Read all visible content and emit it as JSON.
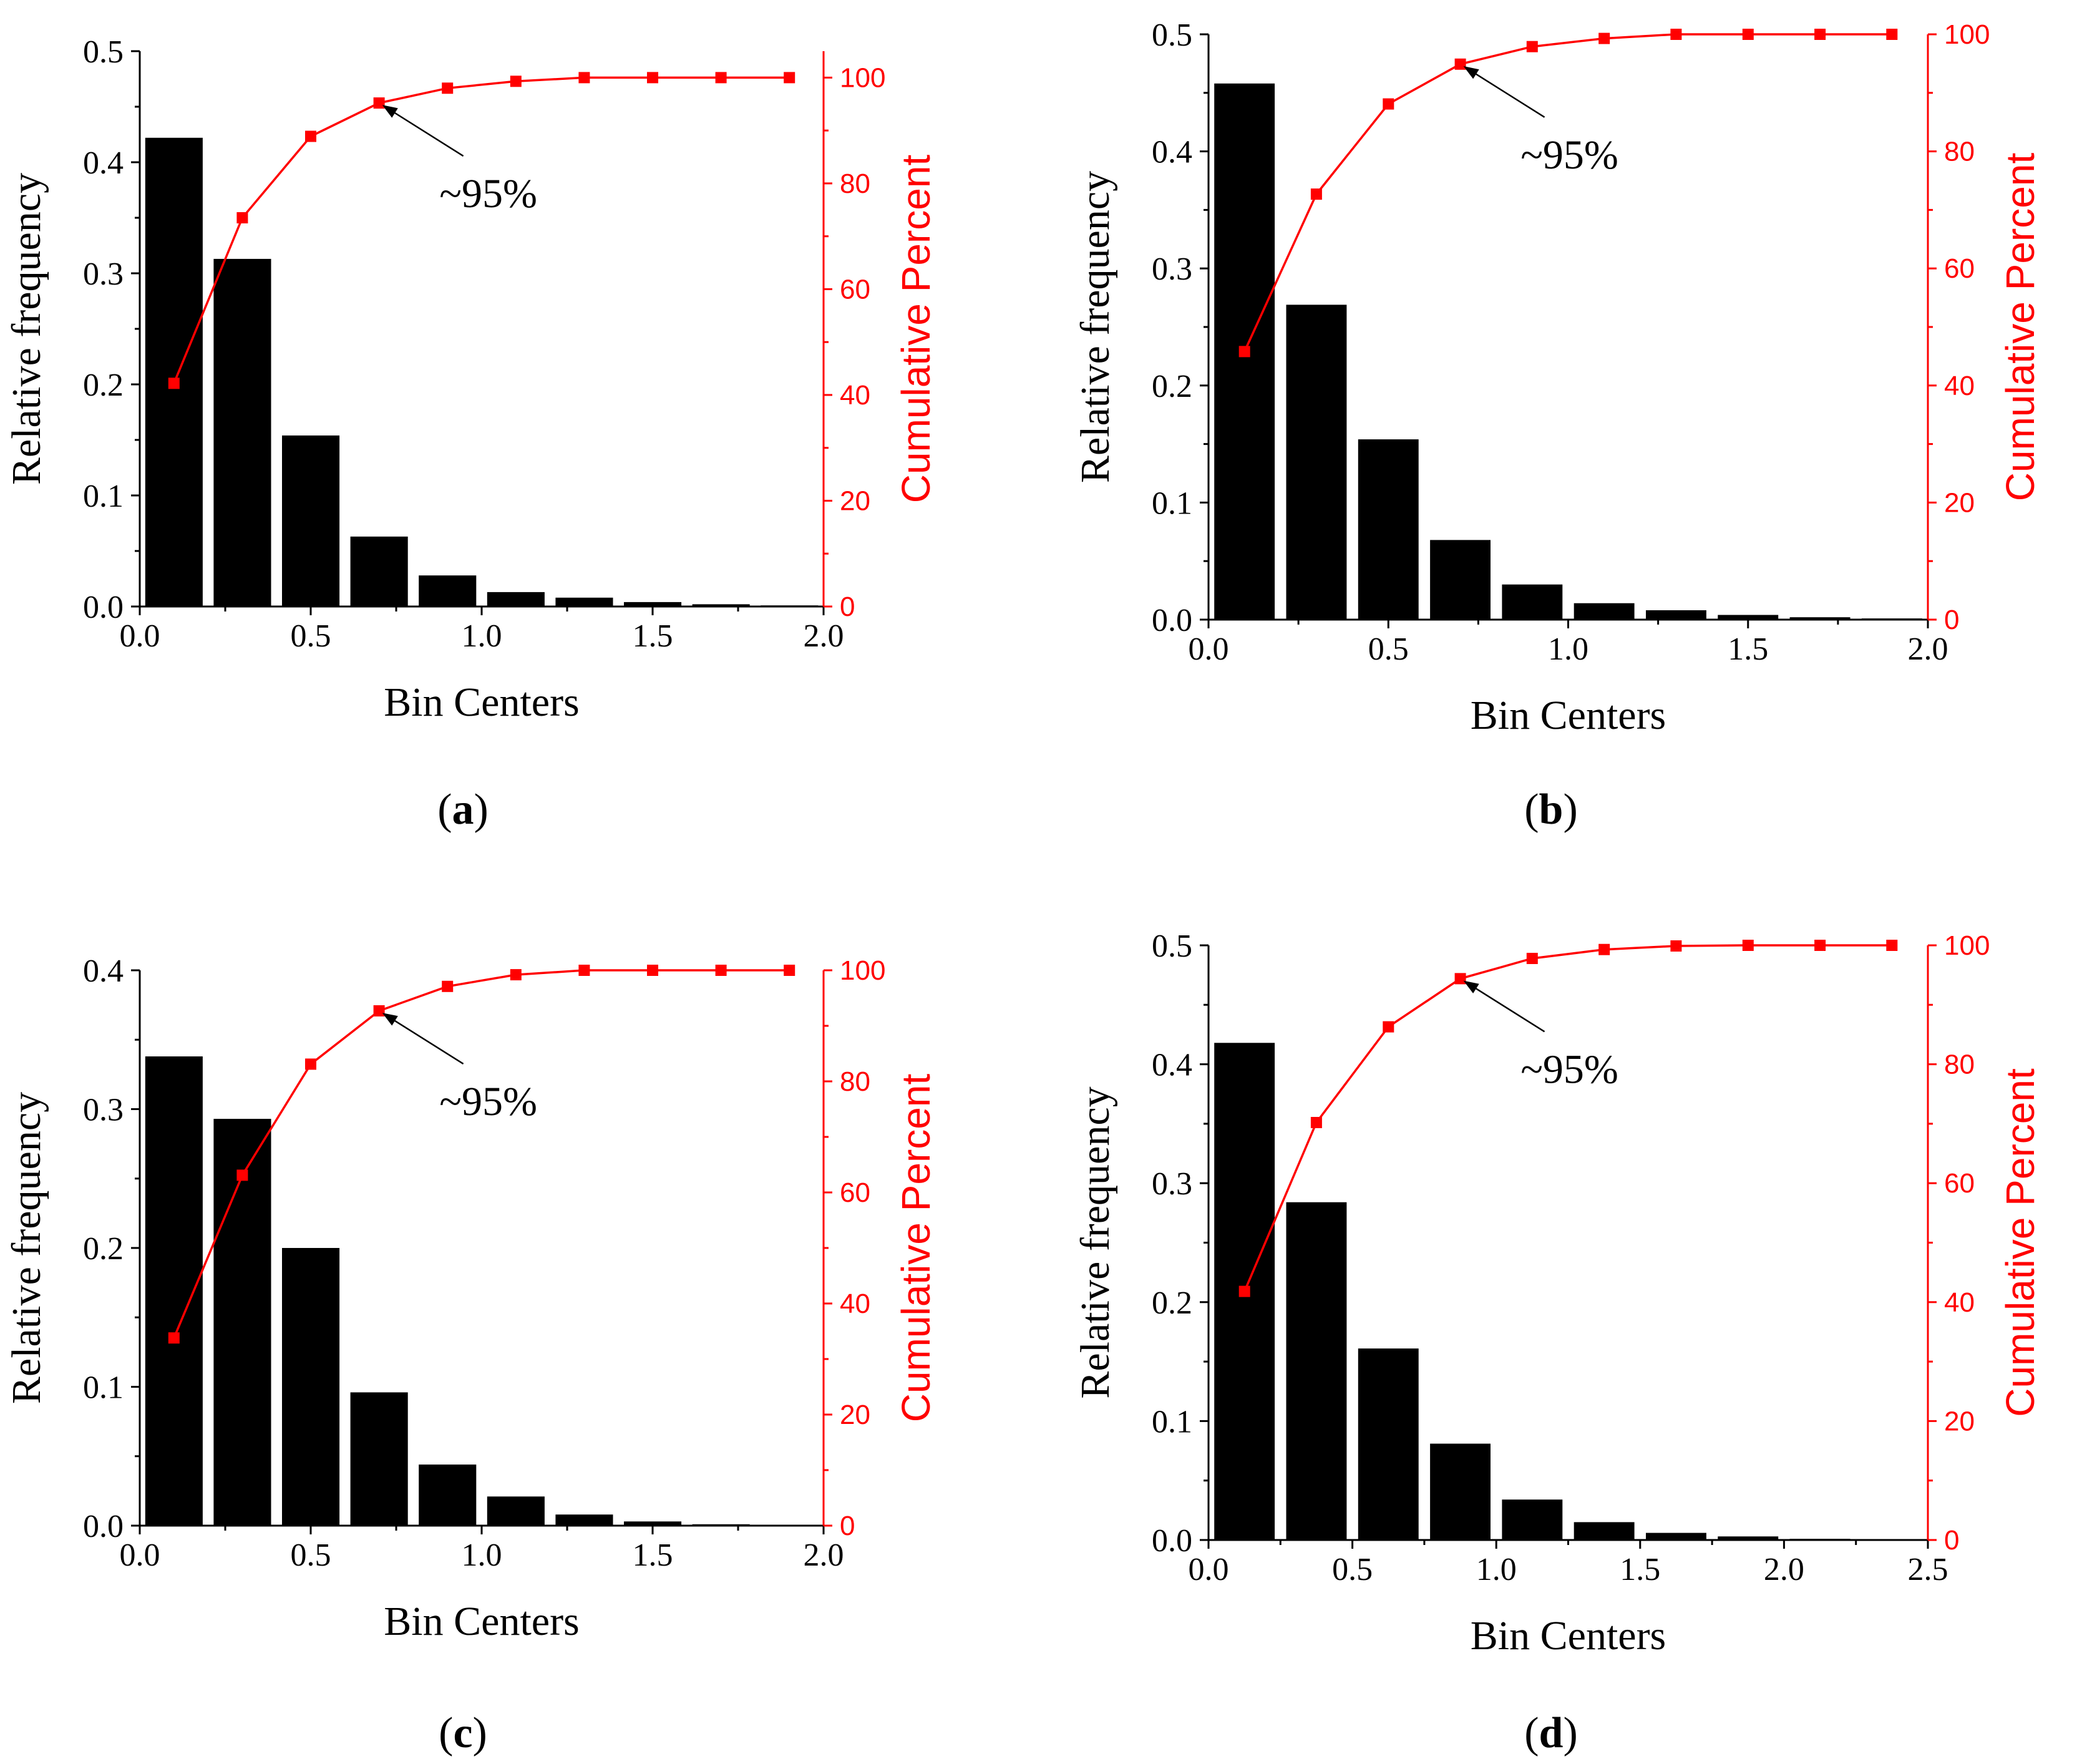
{
  "chart_data": [
    {
      "type": "bar",
      "panel_label": "a",
      "xlabel": "Bin Centers",
      "ylabel": "Relative frequency",
      "y2label": "Cumulative Percent",
      "xlim": [
        0.0,
        2.0
      ],
      "ylim": [
        0.0,
        0.5
      ],
      "y2lim": [
        0,
        105
      ],
      "xticks": [
        "0.0",
        "0.5",
        "1.0",
        "1.5",
        "2.0"
      ],
      "yticks": [
        "0.0",
        "0.1",
        "0.2",
        "0.3",
        "0.4",
        "0.5"
      ],
      "y2ticks": [
        "0",
        "20",
        "40",
        "60",
        "80",
        "100"
      ],
      "bin_centers": [
        0.1,
        0.3,
        0.5,
        0.7,
        0.9,
        1.1,
        1.3,
        1.5,
        1.7,
        1.9
      ],
      "series": [
        {
          "name": "Relative frequency",
          "axis": "left",
          "color": "#000000",
          "values": [
            0.422,
            0.313,
            0.154,
            0.063,
            0.028,
            0.013,
            0.008,
            0.004,
            0.002,
            0.001
          ]
        },
        {
          "name": "Cumulative Percent",
          "axis": "right",
          "color": "#ff0000",
          "values": [
            42.2,
            73.5,
            88.9,
            95.2,
            98.0,
            99.3,
            100.0,
            100.0,
            100.0,
            100.0
          ]
        }
      ],
      "annotation": {
        "text": "~95%",
        "x": 0.7,
        "y2": 95.2
      }
    },
    {
      "type": "bar",
      "panel_label": "b",
      "xlabel": "Bin Centers",
      "ylabel": "Relative frequency",
      "y2label": "Cumulative Percent",
      "xlim": [
        0.0,
        2.0
      ],
      "ylim": [
        0.0,
        0.5
      ],
      "y2lim": [
        0,
        100
      ],
      "xticks": [
        "0.0",
        "0.5",
        "1.0",
        "1.5",
        "2.0"
      ],
      "yticks": [
        "0.0",
        "0.1",
        "0.2",
        "0.3",
        "0.4",
        "0.5"
      ],
      "y2ticks": [
        "0",
        "20",
        "40",
        "60",
        "80",
        "100"
      ],
      "bin_centers": [
        0.1,
        0.3,
        0.5,
        0.7,
        0.9,
        1.1,
        1.3,
        1.5,
        1.7,
        1.9
      ],
      "series": [
        {
          "name": "Relative frequency",
          "axis": "left",
          "color": "#000000",
          "values": [
            0.458,
            0.269,
            0.154,
            0.068,
            0.03,
            0.014,
            0.008,
            0.004,
            0.002,
            0.001
          ]
        },
        {
          "name": "Cumulative Percent",
          "axis": "right",
          "color": "#ff0000",
          "values": [
            45.8,
            72.7,
            88.1,
            94.9,
            97.9,
            99.3,
            100.0,
            100.0,
            100.0,
            100.0
          ]
        }
      ],
      "annotation": {
        "text": "~95%",
        "x": 0.7,
        "y2": 94.9
      }
    },
    {
      "type": "bar",
      "panel_label": "c",
      "xlabel": "Bin Centers",
      "ylabel": "Relative frequency",
      "y2label": "Cumulative Percent",
      "xlim": [
        0.0,
        2.0
      ],
      "ylim": [
        0.0,
        0.4
      ],
      "y2lim": [
        0,
        100
      ],
      "xticks": [
        "0.0",
        "0.5",
        "1.0",
        "1.5",
        "2.0"
      ],
      "yticks": [
        "0.0",
        "0.1",
        "0.2",
        "0.3",
        "0.4"
      ],
      "y2ticks": [
        "0",
        "20",
        "40",
        "60",
        "80",
        "100"
      ],
      "bin_centers": [
        0.1,
        0.3,
        0.5,
        0.7,
        0.9,
        1.1,
        1.3,
        1.5,
        1.7,
        1.9
      ],
      "series": [
        {
          "name": "Relative frequency",
          "axis": "left",
          "color": "#000000",
          "values": [
            0.338,
            0.293,
            0.2,
            0.096,
            0.044,
            0.021,
            0.008,
            0.003,
            0.001,
            0.0005
          ]
        },
        {
          "name": "Cumulative Percent",
          "axis": "right",
          "color": "#ff0000",
          "values": [
            33.8,
            63.1,
            83.1,
            92.7,
            97.1,
            99.2,
            100.0,
            100.0,
            100.0,
            100.0
          ]
        }
      ],
      "annotation": {
        "text": "~95%",
        "x": 0.7,
        "y2": 92.7
      }
    },
    {
      "type": "bar",
      "panel_label": "d",
      "xlabel": "Bin Centers",
      "ylabel": "Relative frequency",
      "y2label": "Cumulative Percent",
      "xlim": [
        0.0,
        2.5
      ],
      "ylim": [
        0.0,
        0.5
      ],
      "y2lim": [
        0,
        100
      ],
      "xticks": [
        "0.0",
        "0.5",
        "1.0",
        "1.5",
        "2.0",
        "2.5"
      ],
      "yticks": [
        "0.0",
        "0.1",
        "0.2",
        "0.3",
        "0.4",
        "0.5"
      ],
      "y2ticks": [
        "0",
        "20",
        "40",
        "60",
        "80",
        "100"
      ],
      "bin_centers": [
        0.125,
        0.375,
        0.625,
        0.875,
        1.125,
        1.375,
        1.625,
        1.875,
        2.125,
        2.375
      ],
      "series": [
        {
          "name": "Relative frequency",
          "axis": "left",
          "color": "#000000",
          "values": [
            0.418,
            0.284,
            0.161,
            0.081,
            0.034,
            0.015,
            0.006,
            0.003,
            0.001,
            0.0005
          ]
        },
        {
          "name": "Cumulative Percent",
          "axis": "right",
          "color": "#ff0000",
          "values": [
            41.8,
            70.2,
            86.3,
            94.4,
            97.8,
            99.3,
            99.9,
            100.0,
            100.0,
            100.0
          ]
        }
      ],
      "annotation": {
        "text": "~95%",
        "x": 0.875,
        "y2": 94.4
      }
    }
  ]
}
